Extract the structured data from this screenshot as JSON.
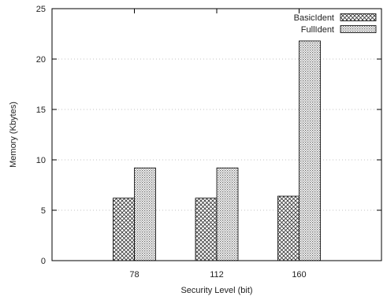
{
  "chart_data": {
    "type": "bar",
    "title": "",
    "xlabel": "Security Level (bit)",
    "ylabel": "Memory (Kbytes)",
    "categories": [
      "78",
      "112",
      "160"
    ],
    "series": [
      {
        "name": "BasicIdent",
        "values": [
          6.2,
          6.2,
          6.4
        ],
        "pattern": "crosshatch",
        "color": "#333333"
      },
      {
        "name": "FullIdent",
        "values": [
          9.2,
          9.2,
          21.8
        ],
        "pattern": "dots",
        "color": "#555555"
      }
    ],
    "ylim": [
      0,
      25
    ],
    "yticks": [
      0,
      5,
      10,
      15,
      20,
      25
    ],
    "grid": "horizontal-dotted",
    "legend_position": "top-right"
  }
}
